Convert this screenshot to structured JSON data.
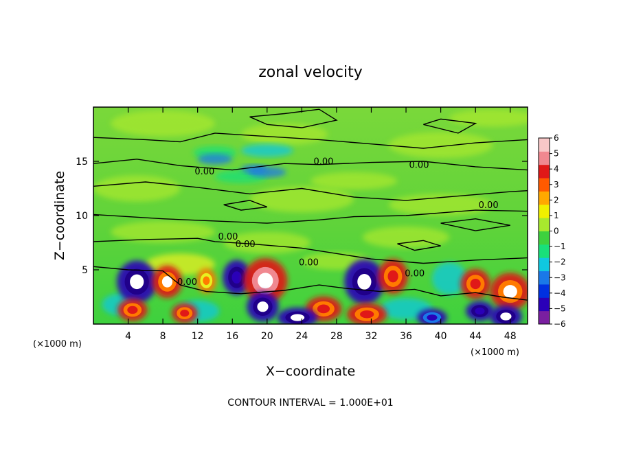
{
  "chart_data": {
    "type": "heatmap",
    "title": "zonal velocity",
    "xlabel": "X−coordinate",
    "ylabel": "Z−coordinate",
    "x_unit_left": "(×1000 m)",
    "x_unit_right": "(×1000 m)",
    "xlim": [
      0,
      50
    ],
    "ylim": [
      0,
      20
    ],
    "x_ticks": [
      4,
      8,
      12,
      16,
      20,
      24,
      28,
      32,
      36,
      40,
      44,
      48
    ],
    "x_tick_labels": [
      "4",
      "8",
      "12",
      "16",
      "20",
      "24",
      "28",
      "32",
      "36",
      "40",
      "44",
      "48"
    ],
    "y_ticks": [
      5,
      10,
      15
    ],
    "y_tick_labels": [
      "5",
      "10",
      "15"
    ],
    "colorbar": {
      "min": -6,
      "max": 6,
      "labels": [
        "6",
        "5",
        "4",
        "3",
        "2",
        "1",
        "0",
        "−1",
        "−2",
        "−3",
        "−4",
        "−5",
        "−6"
      ],
      "colors": [
        "#7a1fa0",
        "#2a00b8",
        "#0030e0",
        "#1a78e8",
        "#10c8e0",
        "#19e07a",
        "#3ed13e",
        "#a8e82e",
        "#f0f000",
        "#ffa800",
        "#ff5a00",
        "#e01818",
        "#f08890",
        "#f8c8c8"
      ]
    },
    "contour_label": "0.00",
    "footer": "CONTOUR INTERVAL = 1.000E+01"
  }
}
